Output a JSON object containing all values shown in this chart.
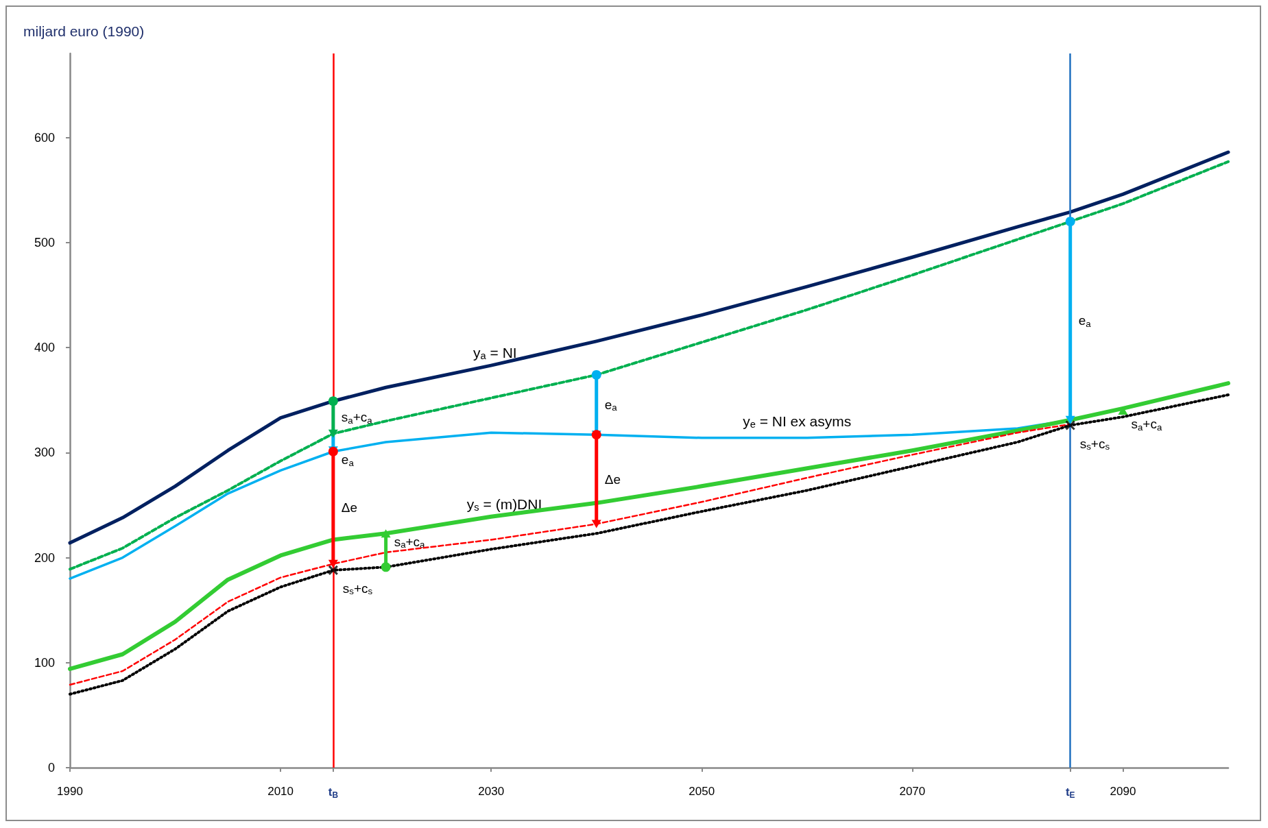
{
  "chart_data": {
    "type": "line",
    "ylabel": "miljard euro (1990)",
    "xlim": [
      1990,
      2100
    ],
    "ylim": [
      0,
      680
    ],
    "xticks": [
      1990,
      2010,
      {
        "value": 2015,
        "label": "t$_{B}$"
      },
      2030,
      2050,
      2070,
      {
        "value": 2085,
        "label": "t$_{E}$"
      },
      2090
    ],
    "yticks": [
      0,
      100,
      200,
      300,
      400,
      500,
      600
    ],
    "grid": false,
    "x": [
      1990,
      1995,
      2000,
      2005,
      2010,
      2015,
      2020,
      2030,
      2040,
      2050,
      2060,
      2070,
      2080,
      2085,
      2090,
      2100
    ],
    "series": [
      {
        "color": "#002060",
        "line_style": "solid",
        "marker": "none",
        "values": [
          214,
          238,
          268,
          302,
          333,
          349,
          362,
          383,
          406,
          431,
          458,
          486,
          515,
          529,
          546,
          586
        ]
      },
      {
        "color": "#00b050",
        "line_style": "dashed",
        "marker": "none",
        "values": [
          189,
          209,
          238,
          264,
          292,
          318,
          330,
          352,
          374,
          405,
          436,
          469,
          503,
          520,
          537,
          577
        ]
      },
      {
        "color": "#00b0f0",
        "line_style": "solid",
        "marker": "none",
        "x": [
          1990,
          1995,
          2000,
          2005,
          2010,
          2015,
          2020,
          2030,
          2040,
          2050,
          2060,
          2070,
          2080,
          2085
        ],
        "values": [
          180,
          200,
          230,
          261,
          283,
          301,
          310,
          319,
          317,
          314,
          314,
          317,
          323,
          331
        ]
      },
      {
        "color": "#33cc33",
        "line_style": "solid",
        "marker": "none",
        "values": [
          94,
          108,
          139,
          179,
          202,
          217,
          223,
          239,
          252,
          268,
          285,
          302,
          321,
          331,
          342,
          366
        ]
      },
      {
        "color": "#ff0000",
        "line_style": "dashed",
        "marker": "none",
        "x": [
          1990,
          1995,
          2000,
          2005,
          2010,
          2015,
          2020,
          2030,
          2040,
          2050,
          2060,
          2070,
          2080,
          2085
        ],
        "values": [
          79,
          92,
          122,
          158,
          181,
          194,
          205,
          217,
          232,
          253,
          276,
          298,
          319,
          327
        ]
      },
      {
        "color": "#000000",
        "line_style": "dotted",
        "marker": "none",
        "values": [
          70,
          83,
          113,
          149,
          172,
          188,
          191,
          208,
          223,
          244,
          264,
          287,
          310,
          326,
          334,
          355
        ]
      },
      {
        "name": "s$_{a}$+c$_{a}$",
        "color": "#00b050",
        "line_style": "solid",
        "marker": "circle",
        "x": [
          2015,
          2015
        ],
        "values": [
          349,
          318
        ]
      },
      {
        "name": "e$_{a}$",
        "color": "#00b0f0",
        "line_style": "solid",
        "x": [
          2015,
          2015
        ],
        "values": [
          318,
          302
        ]
      },
      {
        "name": "Δe",
        "color": "#ff0000",
        "line_style": "solid",
        "marker": "circle",
        "x": [
          2015,
          2015
        ],
        "values": [
          301,
          194
        ]
      },
      {
        "name": "s$_{a}$+c$_{a}$",
        "color": "#33cc33",
        "line_style": "solid",
        "marker": "circle",
        "x": [
          2020,
          2020
        ],
        "values": [
          191,
          223
        ]
      },
      {
        "name": "e$_{a}$",
        "color": "#00b0f0",
        "line_style": "solid",
        "marker": "circle",
        "x": [
          2040,
          2040
        ],
        "values": [
          374,
          317
        ]
      },
      {
        "name": "Δe",
        "color": "#ff0000",
        "line_style": "solid",
        "marker": "circle",
        "x": [
          2040,
          2040
        ],
        "values": [
          317,
          232
        ]
      },
      {
        "name": "e$_{a}$",
        "color": "#00b0f0",
        "line_style": "solid",
        "marker": "circle",
        "x": [
          2085,
          2085
        ],
        "values": [
          520,
          331
        ]
      },
      {
        "name": "s$_{a}$+c$_{a}$",
        "color": "#33cc33",
        "line_style": "solid",
        "x": [
          2090,
          2090
        ],
        "values": [
          336,
          340
        ]
      },
      {
        "name": "s$_{s}$+c$_{s}$",
        "type": "scatter",
        "color": "#000000",
        "marker": "cross",
        "x": [
          2015,
          2085
        ],
        "values": [
          188,
          326
        ]
      }
    ],
    "ref_lines": [
      {
        "axis": "x",
        "value": 2015,
        "color": "#ff0000"
      },
      {
        "axis": "x",
        "value": 2085,
        "color": "#1f6fbf"
      }
    ],
    "annotations": [
      {
        "text": "y$_{a}$ = NI",
        "x": 2028.3,
        "y": 379.4
      },
      {
        "text": "y$_{e}$ = NI ex asyms",
        "x": 2053.9,
        "y": 314
      },
      {
        "text": "y$_{s}$ = (m)DNI",
        "x": 2027.7,
        "y": 235.3
      }
    ]
  }
}
